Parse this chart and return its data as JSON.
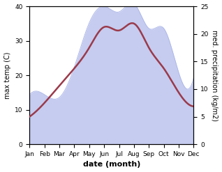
{
  "months": [
    "Jan",
    "Feb",
    "Mar",
    "Apr",
    "May",
    "Jun",
    "Jul",
    "Aug",
    "Sep",
    "Oct",
    "Nov",
    "Dec"
  ],
  "temp": [
    8.0,
    12.0,
    17.0,
    22.0,
    28.0,
    34.0,
    33.0,
    35.0,
    28.0,
    22.0,
    15.0,
    11.0
  ],
  "precip": [
    9.0,
    9.0,
    8.5,
    14.0,
    22.0,
    25.0,
    24.0,
    25.5,
    21.0,
    21.0,
    13.0,
    12.0
  ],
  "temp_color": "#9b3a4a",
  "precip_fill_color": "#c5ccf0",
  "precip_edge_color": "#aab4e8",
  "temp_ylim": [
    0,
    40
  ],
  "precip_ylim": [
    0,
    25
  ],
  "temp_yticks": [
    0,
    10,
    20,
    30,
    40
  ],
  "precip_yticks": [
    0,
    5,
    10,
    15,
    20,
    25
  ],
  "xlabel": "date (month)",
  "ylabel_left": "max temp (C)",
  "ylabel_right": "med. precipitation (kg/m2)",
  "background_color": "#ffffff",
  "temp_linewidth": 1.8,
  "label_fontsize": 7,
  "tick_fontsize": 6.5
}
